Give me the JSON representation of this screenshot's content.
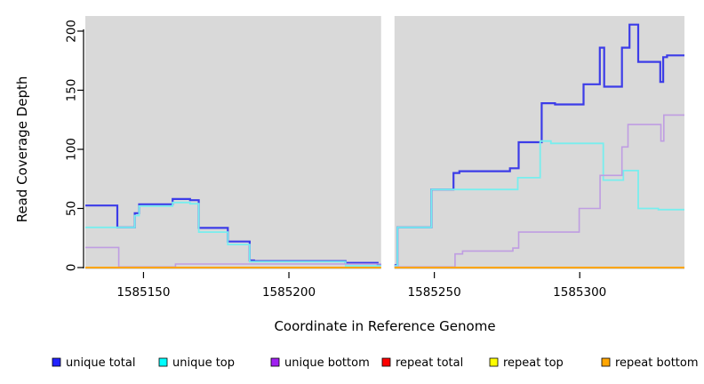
{
  "chart_data": {
    "type": "line",
    "subtype": "step",
    "xlabel": "Coordinate in Reference Genome",
    "ylabel": "Read Coverage Depth",
    "xlim": [
      1585130,
      1585336
    ],
    "ylim": [
      0,
      200
    ],
    "background_color": "#d9d9d9",
    "gap_region": {
      "start": 1585231.7,
      "end": 1585236.3,
      "color": "#ffffff"
    },
    "x_axis": {
      "ticks": [
        {
          "coord": 1585150,
          "label": "1585150"
        },
        {
          "coord": 1585200,
          "label": "1585200"
        },
        {
          "coord": 1585250,
          "label": "1585250"
        },
        {
          "coord": 1585300,
          "label": "1585300"
        }
      ]
    },
    "y_axis": {
      "ticks": [
        {
          "value": 0,
          "label": "0"
        },
        {
          "value": 50,
          "label": "50"
        },
        {
          "value": 100,
          "label": "100"
        },
        {
          "value": 150,
          "label": "150"
        },
        {
          "value": 200,
          "label": "200"
        }
      ]
    },
    "series": [
      {
        "name": "unique total",
        "line_color": "#3c3ce8",
        "line_width": 2.2,
        "segments": [
          [
            [
              1585130,
              52.5
            ],
            [
              1585141,
              34
            ],
            [
              1585147,
              46
            ],
            [
              1585148.5,
              53.5
            ],
            [
              1585160,
              58
            ],
            [
              1585166,
              57
            ],
            [
              1585169,
              33.5
            ],
            [
              1585179,
              22
            ],
            [
              1585186.5,
              6
            ],
            [
              1585188,
              5.5
            ],
            [
              1585219.5,
              4
            ],
            [
              1585230.5,
              2.5
            ],
            [
              1585231.7,
              2.5
            ]
          ],
          [
            [
              1585236.3,
              2
            ],
            [
              1585237.3,
              34
            ],
            [
              1585249,
              66
            ],
            [
              1585256.6,
              80
            ],
            [
              1585258.6,
              81.5
            ],
            [
              1585276,
              84
            ],
            [
              1585279,
              106
            ],
            [
              1585286.9,
              139
            ],
            [
              1585291.5,
              138
            ],
            [
              1585301.3,
              155
            ],
            [
              1585306.9,
              186
            ],
            [
              1585308.4,
              153
            ],
            [
              1585314.5,
              186
            ],
            [
              1585317.1,
              205.5
            ],
            [
              1585320.1,
              174
            ],
            [
              1585327.7,
              157
            ],
            [
              1585328.7,
              178
            ],
            [
              1585330,
              179.5
            ],
            [
              1585336,
              179.5
            ]
          ]
        ]
      },
      {
        "name": "unique top",
        "line_color": "#78eeee",
        "line_width": 1.8,
        "segments": [
          [
            [
              1585130,
              34
            ],
            [
              1585147,
              44
            ],
            [
              1585148.5,
              52
            ],
            [
              1585160,
              55
            ],
            [
              1585166,
              54
            ],
            [
              1585169,
              30
            ],
            [
              1585179,
              19.5
            ],
            [
              1585186.5,
              5
            ],
            [
              1585219.5,
              1.5
            ],
            [
              1585231.7,
              1.5
            ]
          ],
          [
            [
              1585236.3,
              1.5
            ],
            [
              1585237.3,
              34
            ],
            [
              1585249,
              66
            ],
            [
              1585278.7,
              76
            ],
            [
              1585286.4,
              107
            ],
            [
              1585290.1,
              105
            ],
            [
              1585308.1,
              74
            ],
            [
              1585315,
              82
            ],
            [
              1585320.1,
              50
            ],
            [
              1585327,
              49
            ],
            [
              1585336,
              49
            ]
          ]
        ]
      },
      {
        "name": "unique bottom",
        "line_color": "#bf9de2",
        "line_width": 1.6,
        "segments": [
          [
            [
              1585130,
              17
            ],
            [
              1585141.5,
              0.5
            ],
            [
              1585161,
              3
            ],
            [
              1585231.7,
              3
            ]
          ],
          [
            [
              1585236.3,
              0.5
            ],
            [
              1585257.1,
              11.5
            ],
            [
              1585259.7,
              14
            ],
            [
              1585277,
              16.5
            ],
            [
              1585279,
              30
            ],
            [
              1585299.8,
              50
            ],
            [
              1585307,
              78
            ],
            [
              1585314.5,
              102
            ],
            [
              1585316.6,
              121
            ],
            [
              1585327.9,
              107
            ],
            [
              1585328.9,
              129
            ],
            [
              1585336,
              129
            ]
          ]
        ]
      },
      {
        "name": "repeat total",
        "line_color": "#e8506e",
        "line_width": 1.2,
        "segments": [
          [
            [
              1585130,
              0
            ],
            [
              1585231.7,
              0
            ]
          ],
          [
            [
              1585236.3,
              0
            ],
            [
              1585336,
              0
            ]
          ]
        ]
      },
      {
        "name": "repeat top",
        "line_color": "#ffff00",
        "line_width": 1.2,
        "segments": [
          [
            [
              1585130,
              0
            ],
            [
              1585231.7,
              0
            ]
          ],
          [
            [
              1585236.3,
              0
            ],
            [
              1585336,
              0
            ]
          ]
        ]
      },
      {
        "name": "repeat bottom",
        "line_color": "#ffa500",
        "line_width": 2.0,
        "segments": [
          [
            [
              1585130,
              0
            ],
            [
              1585231.7,
              0
            ]
          ],
          [
            [
              1585236.3,
              0
            ],
            [
              1585336,
              0
            ]
          ]
        ]
      }
    ],
    "legend": {
      "position": "bottom",
      "entries": [
        {
          "label": "unique total",
          "color": "#2222ff"
        },
        {
          "label": "unique top",
          "color": "#00ffff"
        },
        {
          "label": "unique bottom",
          "color": "#a020f0"
        },
        {
          "label": "repeat total",
          "color": "#ff0000"
        },
        {
          "label": "repeat top",
          "color": "#ffff00"
        },
        {
          "label": "repeat bottom",
          "color": "#ffa500"
        }
      ]
    }
  }
}
